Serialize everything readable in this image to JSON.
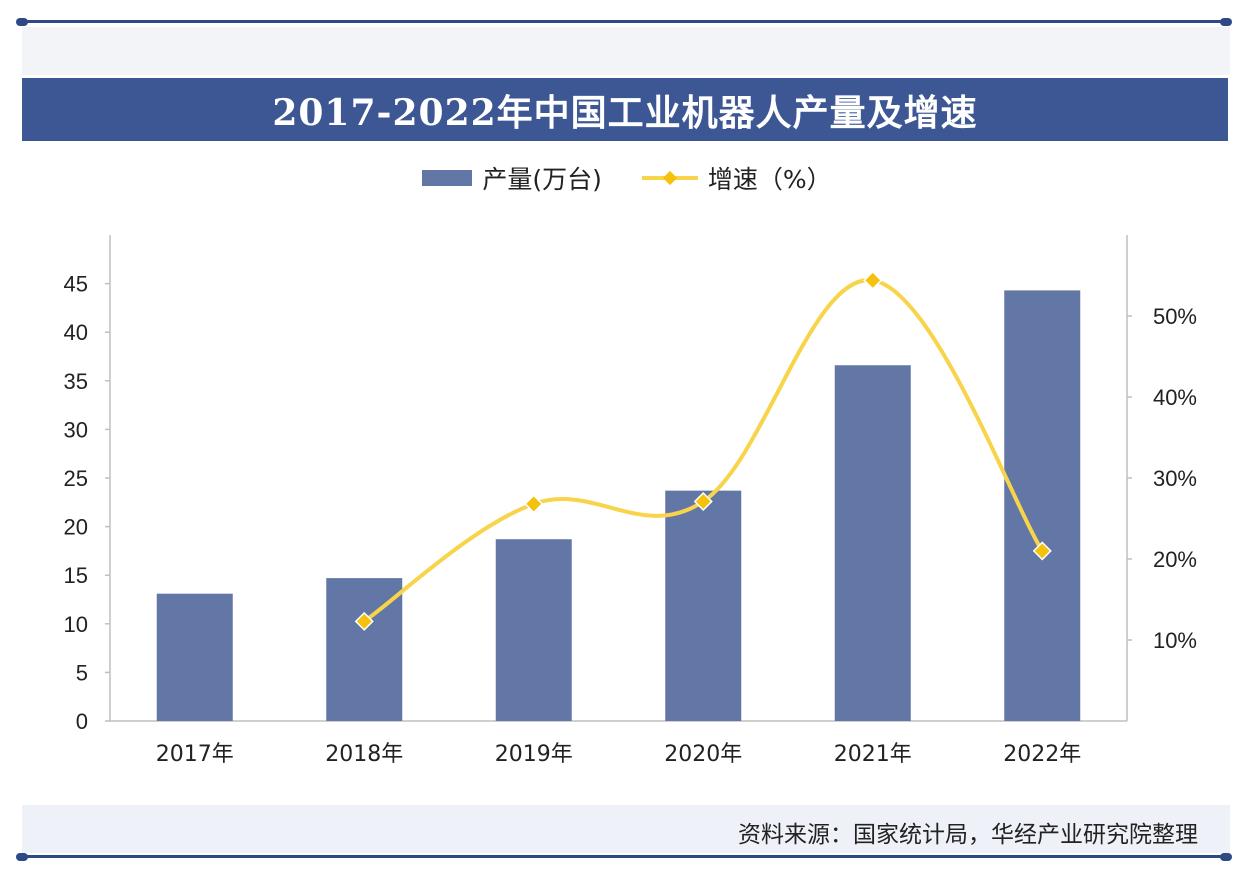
{
  "title": "2017-2022年中国工业机器人产量及增速",
  "source": "资料来源：国家统计局，华经产业研究院整理",
  "chart_data": {
    "type": "bar",
    "categories": [
      "2017年",
      "2018年",
      "2019年",
      "2020年",
      "2021年",
      "2022年"
    ],
    "series": [
      {
        "name": "产量(万台)",
        "type": "bar",
        "axis": "left",
        "values": [
          13.1,
          14.7,
          18.7,
          23.7,
          36.6,
          44.3
        ]
      },
      {
        "name": "增速（%）",
        "type": "line",
        "axis": "right",
        "values": [
          null,
          12.3,
          26.8,
          27.1,
          54.4,
          21.0
        ]
      }
    ],
    "y_left": {
      "ylim": [
        0,
        50
      ],
      "ticks": [
        0,
        5,
        10,
        15,
        20,
        25,
        30,
        35,
        40,
        45
      ]
    },
    "y_right": {
      "ylim": [
        0,
        60
      ],
      "ticks": [
        10,
        20,
        30,
        40,
        50
      ],
      "tick_labels": [
        "10%",
        "20%",
        "30%",
        "40%",
        "50%"
      ]
    },
    "legend_position": "top-center",
    "grid": false,
    "colors": {
      "bar": "#6277a5",
      "line": "#f8d44a",
      "marker": "#f4c20d"
    }
  }
}
